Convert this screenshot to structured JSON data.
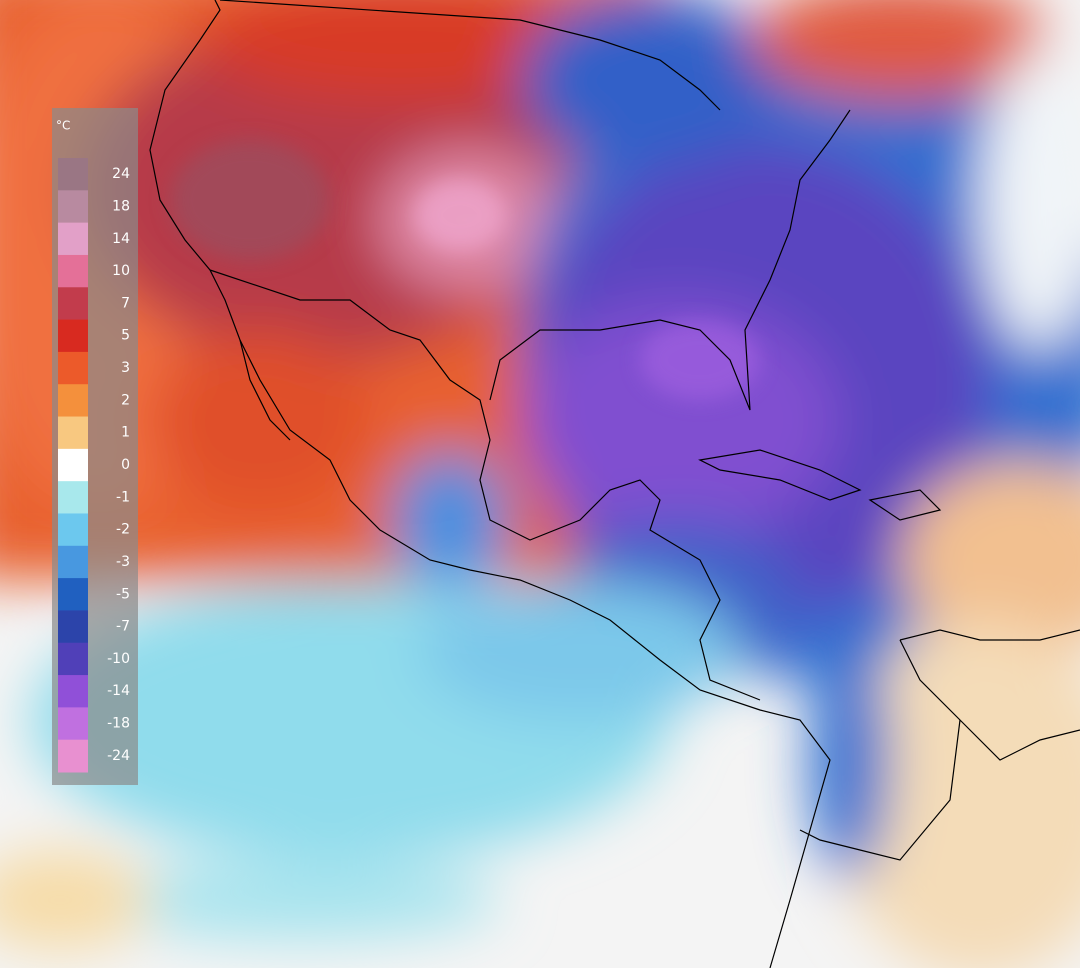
{
  "legend": {
    "unit": "°C",
    "labels": [
      24,
      18,
      14,
      10,
      7,
      5,
      3,
      2,
      1,
      0,
      -1,
      -2,
      -3,
      -5,
      -7,
      -10,
      -14,
      -18,
      -24
    ],
    "colors": [
      "#9a7684",
      "#b88aa0",
      "#e2a0c8",
      "#e47098",
      "#c23c4c",
      "#d82a20",
      "#ec5a2a",
      "#f4903c",
      "#f8c880",
      "#ffffff",
      "#a8e8ec",
      "#6cc8ee",
      "#4898e0",
      "#2060c0",
      "#2c44aa",
      "#5040b8",
      "#9050d8",
      "#c070e0",
      "#e890d0"
    ]
  }
}
